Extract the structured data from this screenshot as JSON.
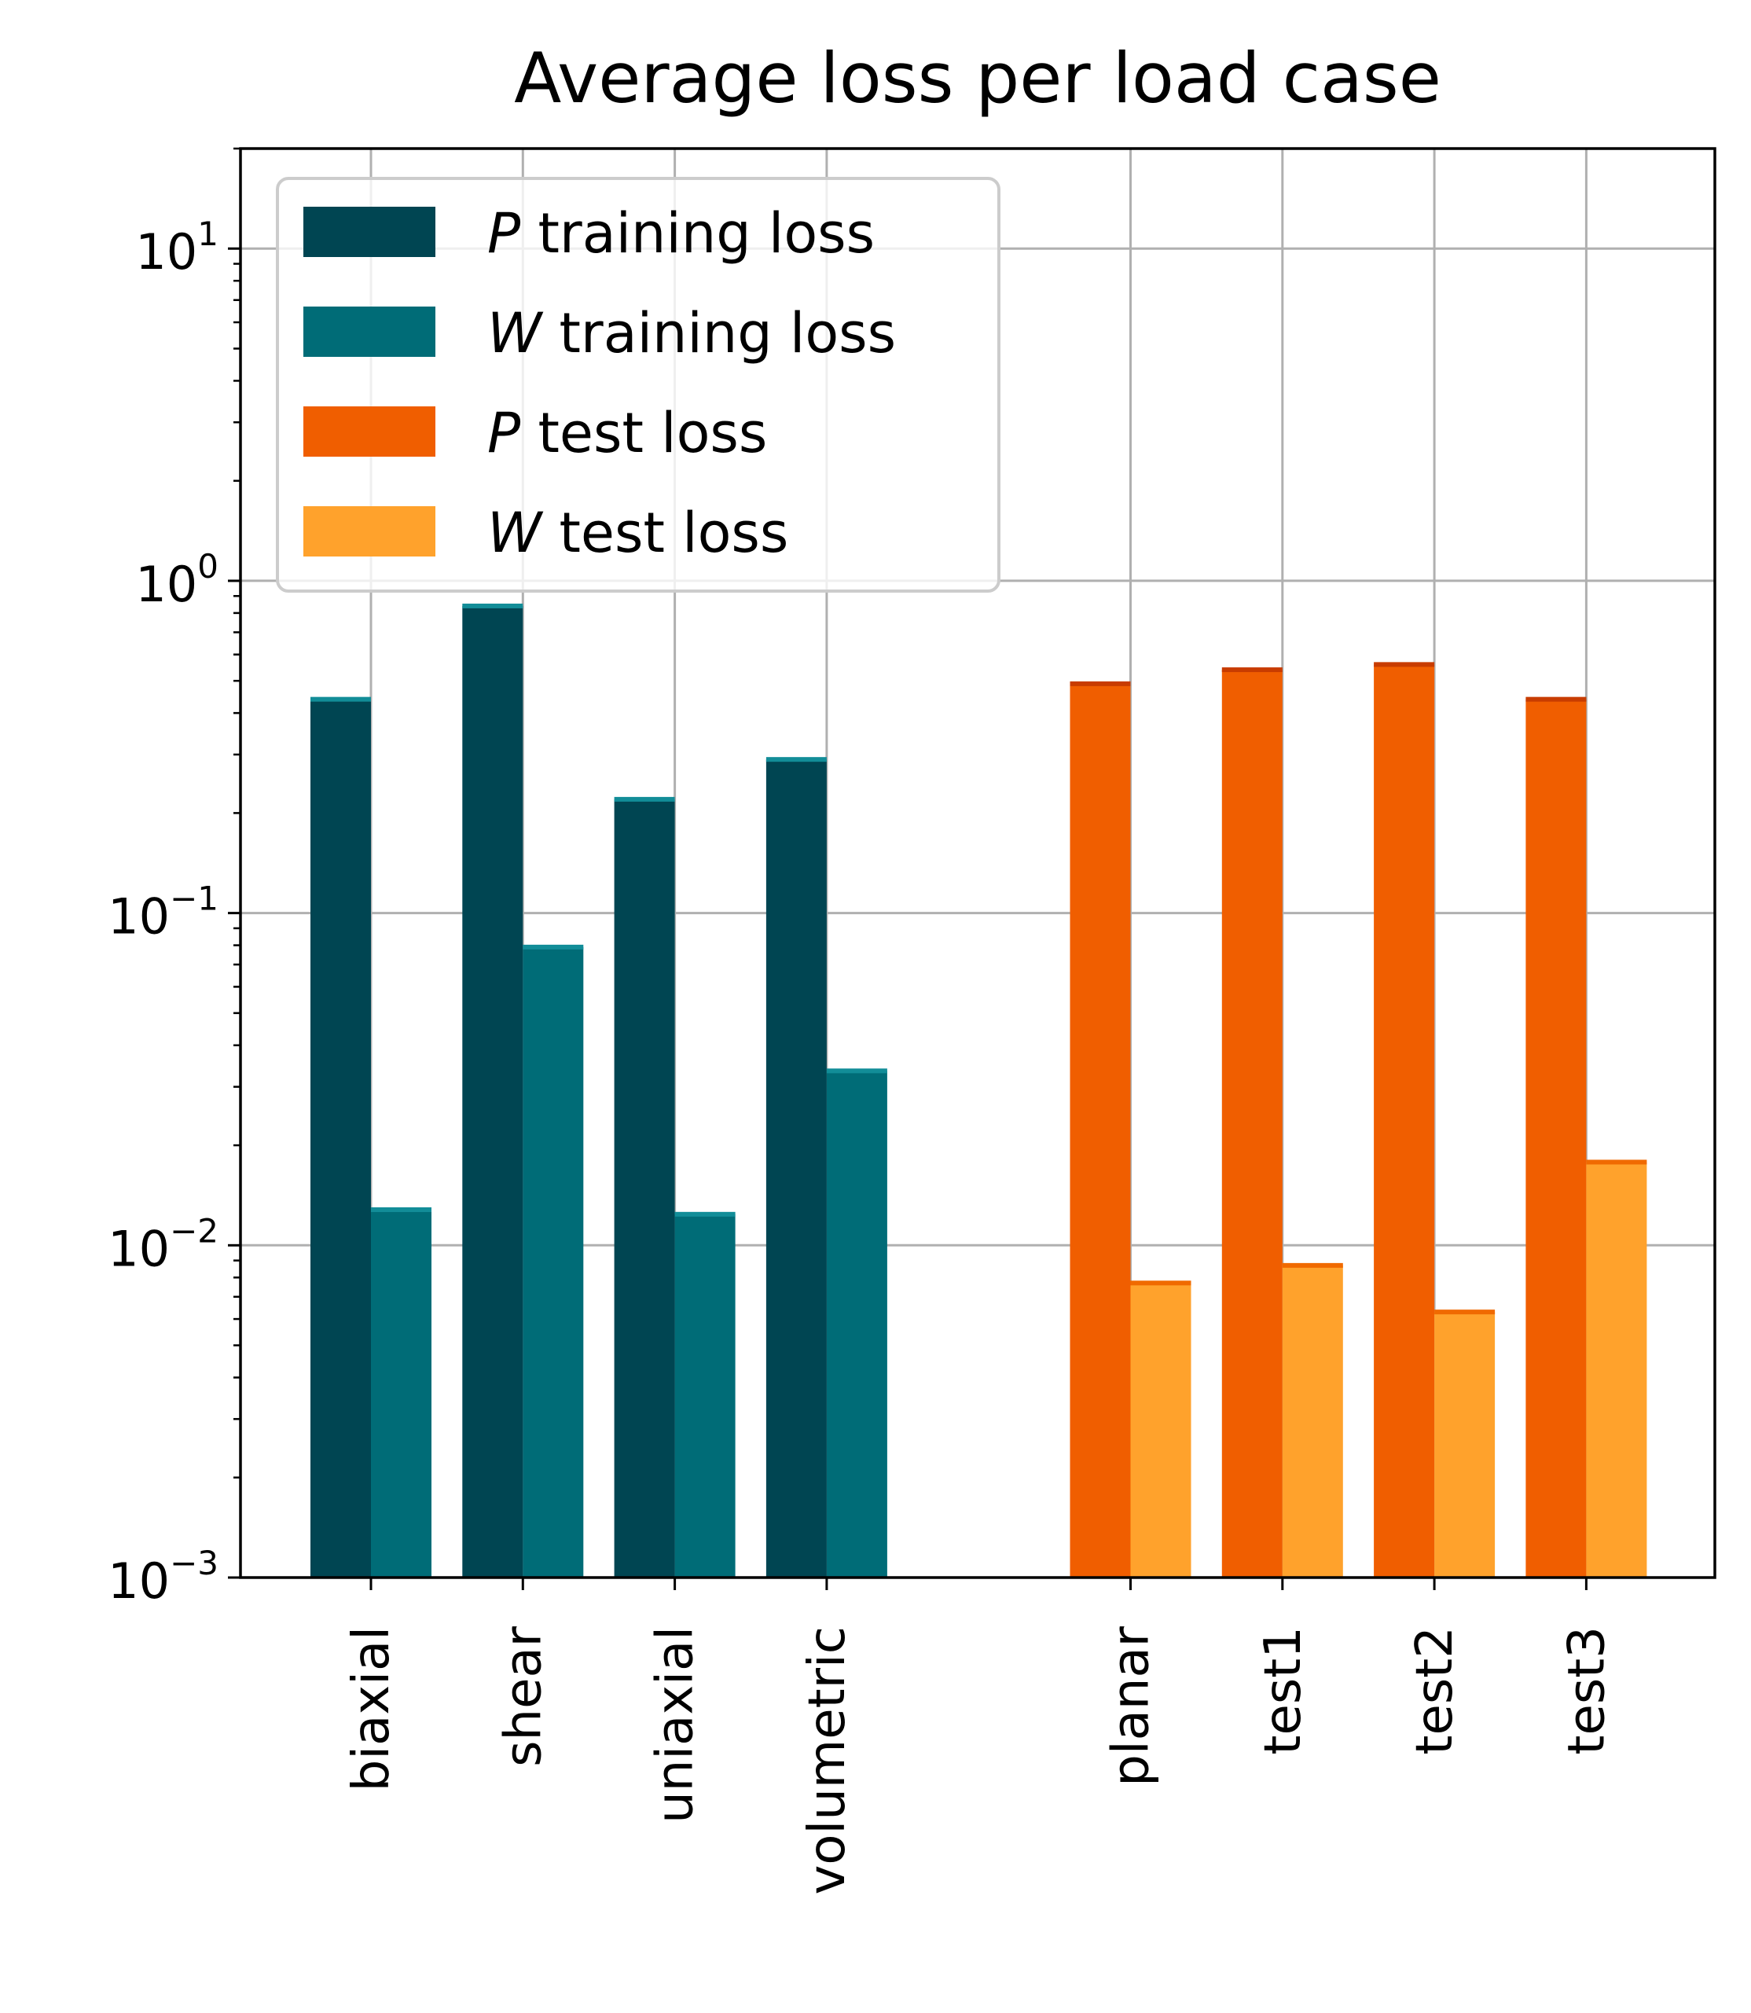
{
  "chart_data": {
    "type": "bar",
    "title": "Average loss per load case",
    "xlabel": "",
    "ylabel": "",
    "yscale": "log",
    "ylim": [
      0.001,
      20
    ],
    "grid": true,
    "legend_position": "top-left",
    "y_ticks": [
      {
        "value": 0.001,
        "base": "10",
        "exp": "−3"
      },
      {
        "value": 0.01,
        "base": "10",
        "exp": "−2"
      },
      {
        "value": 0.1,
        "base": "10",
        "exp": "−1"
      },
      {
        "value": 1,
        "base": "10",
        "exp": "0"
      },
      {
        "value": 10,
        "base": "10",
        "exp": "1"
      }
    ],
    "groups": [
      {
        "categories": [
          "biaxial",
          "shear",
          "uniaxial",
          "volumetric"
        ],
        "series": [
          {
            "name": "P training loss",
            "name_var": "P",
            "name_rest": " training loss",
            "color": "#004552",
            "cap_color": "#128d98",
            "values": [
              0.44,
              0.84,
              0.22,
              0.29
            ]
          },
          {
            "name": "W training loss",
            "name_var": "W",
            "name_rest": " training loss",
            "color": "#006c77",
            "cap_color": "#128d98",
            "values": [
              0.0128,
              0.079,
              0.0124,
              0.0335
            ]
          }
        ]
      },
      {
        "categories": [
          "planar",
          "test1",
          "test2",
          "test3"
        ],
        "series": [
          {
            "name": "P test loss",
            "name_var": "P",
            "name_rest": " test loss",
            "color": "#f05e00",
            "cap_color": "#c83c00",
            "values": [
              0.49,
              0.54,
              0.56,
              0.44
            ]
          },
          {
            "name": "W test loss",
            "name_var": "W",
            "name_rest": " test loss",
            "color": "#ffa22c",
            "cap_color": "#f06a00",
            "values": [
              0.0077,
              0.0087,
              0.0063,
              0.0178
            ]
          }
        ]
      }
    ]
  }
}
